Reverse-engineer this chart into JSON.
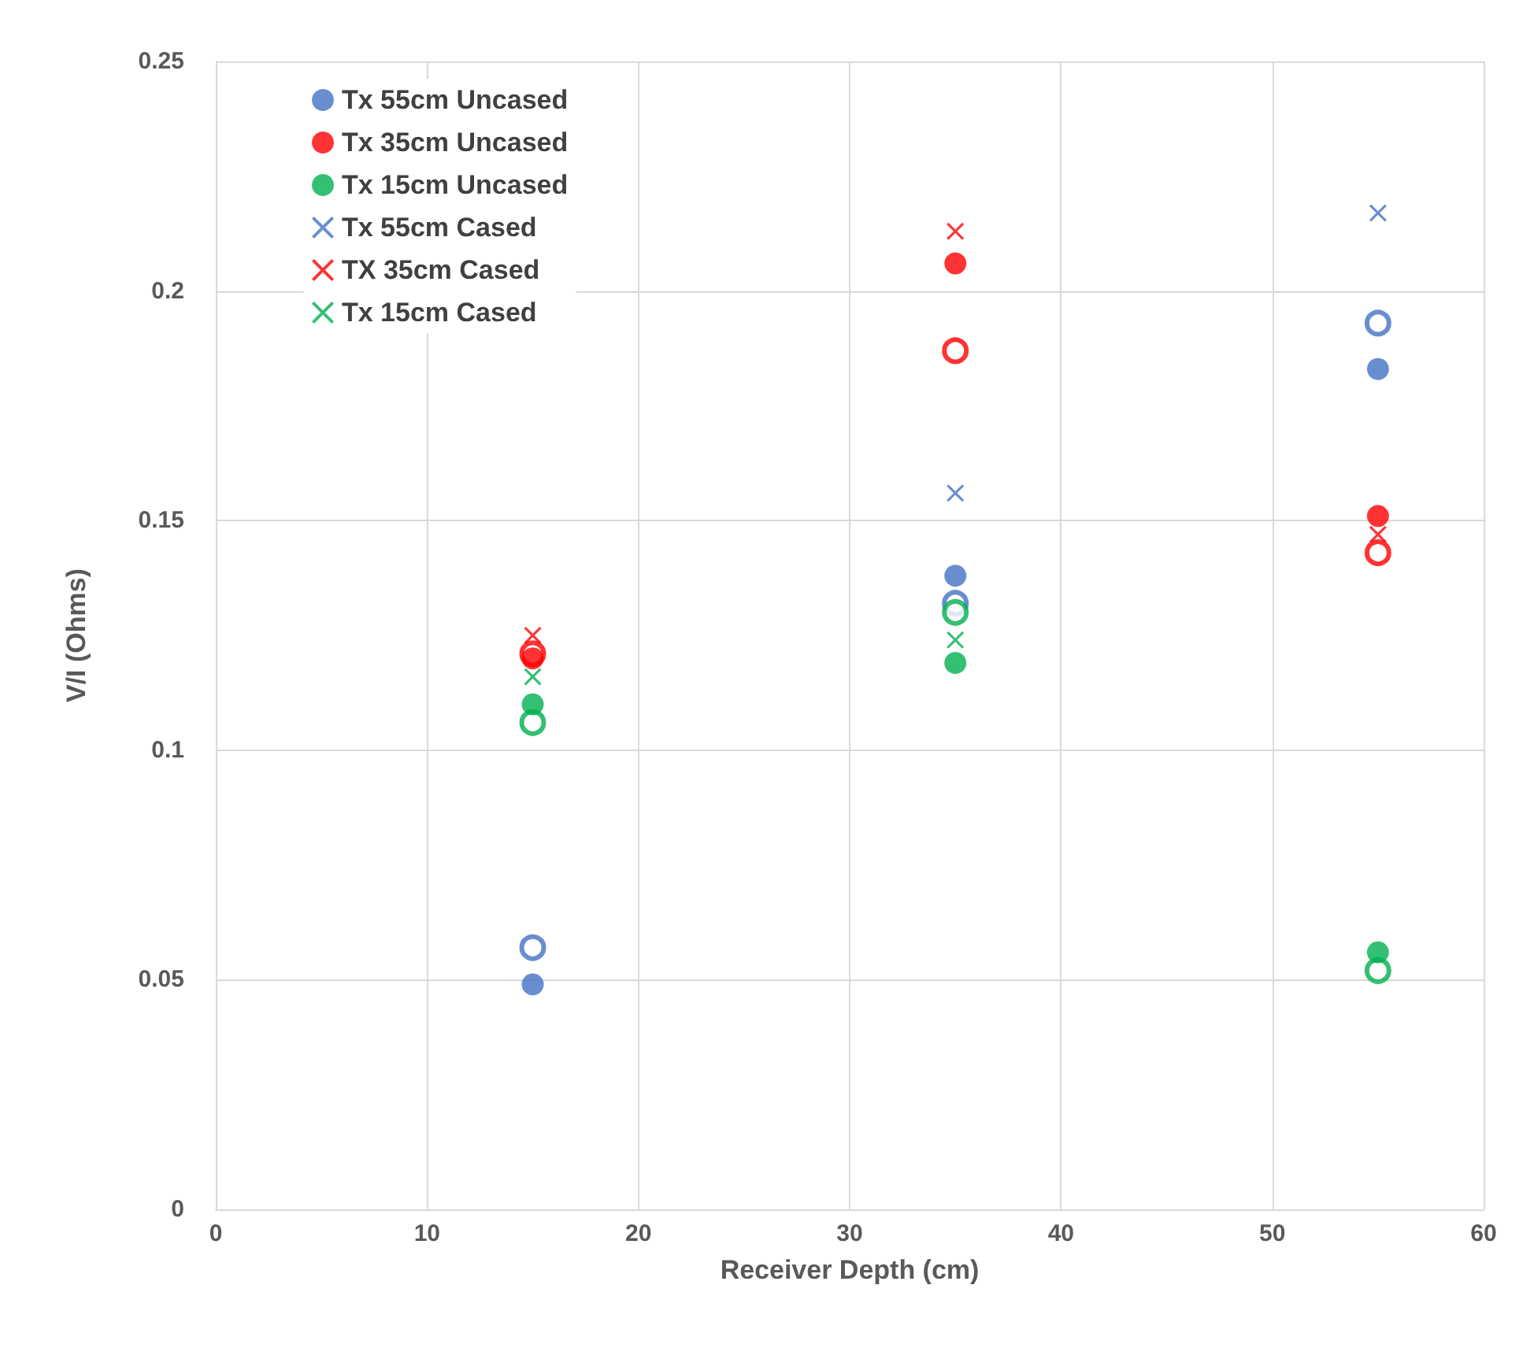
{
  "chart_data": {
    "type": "scatter",
    "xlabel": "Receiver Depth (cm)",
    "ylabel": "V/I (Ohms)",
    "x": [
      15,
      35,
      55
    ],
    "series": [
      {
        "name": "Tx 55cm Uncased",
        "color": "#4472c4",
        "marker": "circle",
        "values": [
          0.049,
          0.138,
          0.183
        ]
      },
      {
        "name": "Tx 35cm Uncased",
        "color": "#ff0000",
        "marker": "circle",
        "values": [
          0.12,
          0.206,
          0.151
        ]
      },
      {
        "name": "Tx 15cm Uncased",
        "color": "#00b050",
        "marker": "circle",
        "values": [
          0.11,
          0.119,
          0.056
        ]
      },
      {
        "name": "Tx 55cm Cased",
        "color": "#4472c4",
        "marker": "cross",
        "values": [
          null,
          0.156,
          0.217
        ]
      },
      {
        "name": "TX 35cm Cased",
        "color": "#ff0000",
        "marker": "cross",
        "values": [
          0.125,
          0.213,
          0.147
        ]
      },
      {
        "name": "Tx 15cm Cased",
        "color": "#00b050",
        "marker": "cross",
        "values": [
          0.116,
          0.124,
          null
        ]
      },
      {
        "color": "#4472c4",
        "marker": "circle",
        "values": [
          0.057,
          0.132,
          0.193
        ]
      },
      {
        "color": "#ff0000",
        "marker": "circle",
        "values": [
          0.121,
          0.187,
          0.143
        ]
      },
      {
        "color": "#00b050",
        "marker": "circle",
        "values": [
          0.106,
          0.13,
          0.052
        ]
      }
    ],
    "xlim": [
      0,
      60
    ],
    "xticks": [
      0,
      10,
      20,
      30,
      40,
      50,
      60
    ],
    "ylim": [
      0,
      0.25
    ],
    "yticks": [
      0,
      0.05,
      0.1,
      0.15,
      0.2,
      0.25
    ],
    "grid": true,
    "legend": "top left"
  }
}
